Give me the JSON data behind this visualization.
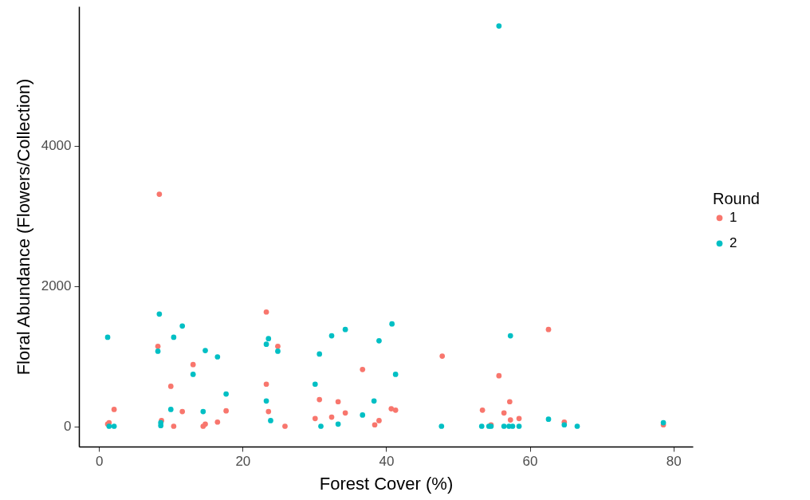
{
  "chart_data": {
    "type": "scatter",
    "xlabel": "Forest Cover (%)",
    "ylabel": "Floral Abundance (Flowers/Collection)",
    "legend_title": "Round",
    "legend": "right",
    "grid": false,
    "marker": "circle",
    "xlim": [
      -2.8,
      82.7
    ],
    "ylim": [
      -290,
      5990
    ],
    "xticks": [
      0,
      20,
      40,
      60,
      80
    ],
    "yticks": [
      0,
      2000,
      4000
    ],
    "series": [
      {
        "name": "1",
        "color": "#f8766d",
        "x": [
          1.2,
          1.4,
          2.1,
          8.2,
          8.7,
          10.0,
          10.4,
          11.6,
          13.1,
          14.5,
          14.8,
          16.5,
          17.7,
          8.4,
          23.3,
          24.9,
          23.3,
          23.6,
          25.9,
          30.7,
          33.3,
          34.3,
          40.7,
          41.3,
          30.1,
          32.4,
          39.0,
          38.4,
          36.7,
          47.8,
          53.4,
          62.6,
          55.7,
          57.2,
          56.4,
          57.3,
          58.5,
          54.6,
          64.8,
          78.6
        ],
        "values": [
          30,
          50,
          240,
          1140,
          80,
          570,
          0,
          210,
          880,
          0,
          30,
          60,
          220,
          3310,
          1630,
          1140,
          600,
          210,
          0,
          380,
          350,
          190,
          250,
          230,
          110,
          130,
          80,
          20,
          810,
          1000,
          230,
          1380,
          720,
          350,
          190,
          90,
          110,
          20,
          60,
          20
        ]
      },
      {
        "name": "2",
        "color": "#00bfc4",
        "x": [
          1.2,
          1.4,
          2.1,
          8.4,
          8.2,
          10.4,
          11.6,
          14.8,
          16.5,
          13.1,
          17.7,
          10.0,
          14.5,
          8.6,
          8.6,
          23.6,
          23.3,
          24.9,
          23.3,
          23.9,
          30.7,
          32.4,
          34.3,
          40.8,
          39.0,
          41.3,
          30.1,
          38.3,
          36.7,
          33.3,
          30.9,
          47.7,
          53.3,
          54.3,
          54.6,
          56.4,
          57.1,
          57.6,
          58.5,
          57.3,
          62.6,
          64.8,
          66.6,
          78.6,
          55.7
        ],
        "values": [
          1270,
          0,
          0,
          1600,
          1070,
          1270,
          1430,
          1080,
          990,
          740,
          460,
          240,
          210,
          50,
          10,
          1250,
          1170,
          1070,
          360,
          80,
          1030,
          1290,
          1380,
          1460,
          1220,
          740,
          600,
          360,
          160,
          30,
          0,
          0,
          0,
          0,
          0,
          0,
          0,
          0,
          0,
          1290,
          100,
          20,
          0,
          50,
          5710
        ]
      }
    ]
  }
}
